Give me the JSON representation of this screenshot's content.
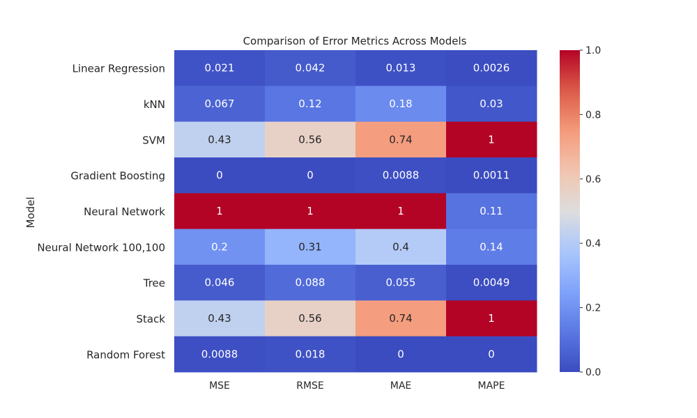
{
  "chart_data": {
    "type": "heatmap",
    "title": "Comparison of Error Metrics Across Models",
    "xlabel": "",
    "ylabel": "Model",
    "columns": [
      "MSE",
      "RMSE",
      "MAE",
      "MAPE"
    ],
    "rows": [
      "Linear Regression",
      "kNN",
      "SVM",
      "Gradient Boosting",
      "Neural Network",
      "Neural Network 100,100",
      "Tree",
      "Stack",
      "Random Forest"
    ],
    "values": [
      [
        0.021,
        0.042,
        0.013,
        0.0026
      ],
      [
        0.067,
        0.12,
        0.18,
        0.03
      ],
      [
        0.43,
        0.56,
        0.74,
        1
      ],
      [
        0,
        0,
        0.0088,
        0.0011
      ],
      [
        1,
        1,
        1,
        0.11
      ],
      [
        0.2,
        0.31,
        0.4,
        0.14
      ],
      [
        0.046,
        0.088,
        0.055,
        0.0049
      ],
      [
        0.43,
        0.56,
        0.74,
        1
      ],
      [
        0.0088,
        0.018,
        0,
        0
      ]
    ],
    "cell_labels": [
      [
        "0.021",
        "0.042",
        "0.013",
        "0.0026"
      ],
      [
        "0.067",
        "0.12",
        "0.18",
        "0.03"
      ],
      [
        "0.43",
        "0.56",
        "0.74",
        "1"
      ],
      [
        "0",
        "0",
        "0.0088",
        "0.0011"
      ],
      [
        "1",
        "1",
        "1",
        "0.11"
      ],
      [
        "0.2",
        "0.31",
        "0.4",
        "0.14"
      ],
      [
        "0.046",
        "0.088",
        "0.055",
        "0.0049"
      ],
      [
        "0.43",
        "0.56",
        "0.74",
        "1"
      ],
      [
        "0.0088",
        "0.018",
        "0",
        "0"
      ]
    ],
    "colormap": "coolwarm",
    "vmin": 0,
    "vmax": 1,
    "colorbar_ticks": [
      "0.0",
      "0.2",
      "0.4",
      "0.6",
      "0.8",
      "1.0"
    ],
    "colorbar_tick_values": [
      0,
      0.2,
      0.4,
      0.6,
      0.8,
      1.0
    ],
    "grid": false,
    "colorbar_placement": "right"
  }
}
